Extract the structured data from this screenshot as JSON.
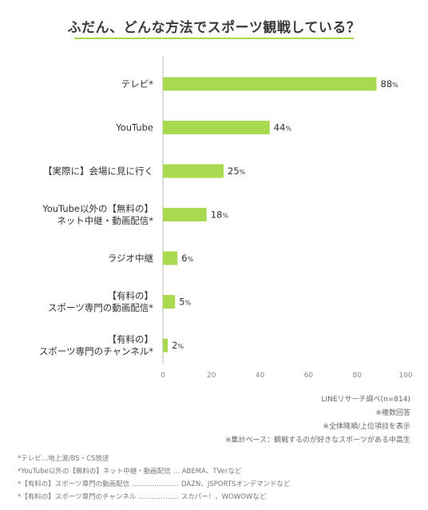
{
  "title": "ふだん、どんな方法でスポーツ観戦している？",
  "colors": {
    "bar": "#a8d94e",
    "underline": "#a8d94e",
    "axis": "#bbbbbb",
    "grid": "#e8e8e8"
  },
  "chart_data": {
    "type": "bar",
    "orientation": "horizontal",
    "title": "ふだん、どんな方法でスポーツ観戦している？",
    "categories": [
      [
        "テレビ*"
      ],
      [
        "YouTube"
      ],
      [
        "【実際に】会場に見に行く"
      ],
      [
        "YouTube以外の【無料の】",
        "ネット中継・動画配信*"
      ],
      [
        "ラジオ中継"
      ],
      [
        "【有料の】",
        "スポーツ専門の動画配信*"
      ],
      [
        "【有料の】",
        "スポーツ専門のチャンネル*"
      ]
    ],
    "values": [
      88,
      44,
      25,
      18,
      6,
      5,
      2
    ],
    "value_suffix": "%",
    "xlim": [
      0,
      100
    ],
    "xticks": [
      0,
      20,
      40,
      60,
      80,
      100
    ],
    "grid": false,
    "legend": "none"
  },
  "notes_right": [
    "LINEリサーチ調べ(n=814)",
    "※複数回答",
    "※全体降順/上位項目を表示",
    "※集計ベース：観戦するのが好きなスポーツがある中高生"
  ],
  "notes_left": [
    "*テレビ…地上波/BS・CS放送",
    "*YouTube以外の【無料の】ネット中継・動画配信 … ABEMA、TVerなど",
    "*【有料の】スポーツ専門の動画配信 ………………… DAZN、JSPORTSオンデマンドなど",
    "*【有料の】スポーツ専門のチャンネル ……………… スカパー！、WOWOWなど"
  ]
}
